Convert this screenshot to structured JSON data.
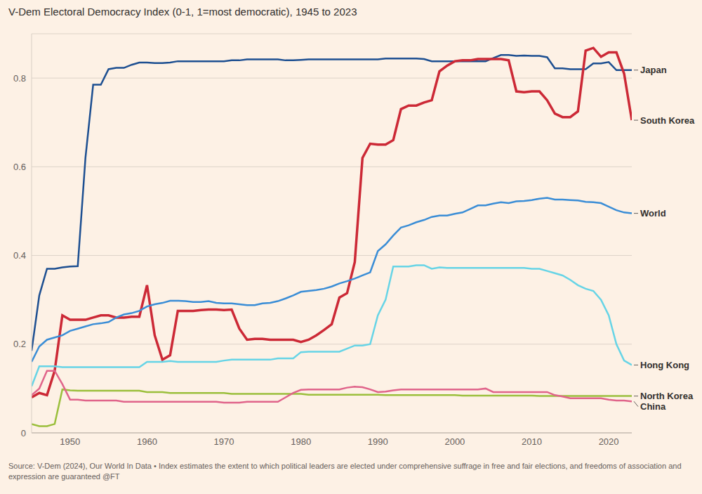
{
  "chart_data": {
    "type": "line",
    "title": "V-Dem Electoral Democracy Index (0-1, 1=most democratic), 1945 to 2023",
    "source": "Source: V-Dem (2024), Our World In Data • Index estimates the extent to which political leaders are elected under comprehensive suffrage in free and fair elections, and freedoms of association and expression are guaranteed @FT",
    "x": [
      1945,
      1946,
      1947,
      1948,
      1949,
      1950,
      1951,
      1952,
      1953,
      1954,
      1955,
      1956,
      1957,
      1958,
      1959,
      1960,
      1961,
      1962,
      1963,
      1964,
      1965,
      1966,
      1967,
      1968,
      1969,
      1970,
      1971,
      1972,
      1973,
      1974,
      1975,
      1976,
      1977,
      1978,
      1979,
      1980,
      1981,
      1982,
      1983,
      1984,
      1985,
      1986,
      1987,
      1988,
      1989,
      1990,
      1991,
      1992,
      1993,
      1994,
      1995,
      1996,
      1997,
      1998,
      1999,
      2000,
      2001,
      2002,
      2003,
      2004,
      2005,
      2006,
      2007,
      2008,
      2009,
      2010,
      2011,
      2012,
      2013,
      2014,
      2015,
      2016,
      2017,
      2018,
      2019,
      2020,
      2021,
      2022,
      2023
    ],
    "xlim": [
      1945,
      2023
    ],
    "xticks": [
      1950,
      1960,
      1970,
      1980,
      1990,
      2000,
      2010,
      2020
    ],
    "ylim": [
      0,
      0.9
    ],
    "yticks": [
      0,
      0.2,
      0.4,
      0.6,
      0.8
    ],
    "grid": true,
    "series": [
      {
        "name": "Japan",
        "color": "#1d4f91",
        "values": [
          0.185,
          0.31,
          0.37,
          0.37,
          0.373,
          0.375,
          0.376,
          0.62,
          0.785,
          0.785,
          0.82,
          0.823,
          0.823,
          0.83,
          0.835,
          0.835,
          0.834,
          0.834,
          0.835,
          0.838,
          0.838,
          0.838,
          0.838,
          0.838,
          0.838,
          0.838,
          0.84,
          0.84,
          0.842,
          0.842,
          0.842,
          0.842,
          0.842,
          0.84,
          0.84,
          0.841,
          0.842,
          0.842,
          0.842,
          0.842,
          0.842,
          0.842,
          0.842,
          0.842,
          0.842,
          0.842,
          0.844,
          0.844,
          0.844,
          0.844,
          0.844,
          0.843,
          0.838,
          0.838,
          0.838,
          0.838,
          0.838,
          0.838,
          0.838,
          0.838,
          0.845,
          0.852,
          0.852,
          0.85,
          0.851,
          0.85,
          0.85,
          0.847,
          0.822,
          0.822,
          0.82,
          0.82,
          0.82,
          0.833,
          0.833,
          0.836,
          0.818,
          0.818,
          0.818
        ]
      },
      {
        "name": "South Korea",
        "color": "#cc2936",
        "values": [
          0.08,
          0.09,
          0.085,
          0.14,
          0.265,
          0.255,
          0.255,
          0.255,
          0.26,
          0.265,
          0.265,
          0.26,
          0.26,
          0.262,
          0.262,
          0.333,
          0.22,
          0.165,
          0.175,
          0.275,
          0.275,
          0.275,
          0.277,
          0.278,
          0.278,
          0.277,
          0.278,
          0.235,
          0.21,
          0.212,
          0.212,
          0.21,
          0.21,
          0.21,
          0.21,
          0.205,
          0.21,
          0.22,
          0.232,
          0.245,
          0.305,
          0.315,
          0.385,
          0.62,
          0.652,
          0.65,
          0.65,
          0.66,
          0.73,
          0.738,
          0.738,
          0.745,
          0.75,
          0.815,
          0.828,
          0.838,
          0.84,
          0.84,
          0.843,
          0.843,
          0.843,
          0.843,
          0.84,
          0.77,
          0.768,
          0.77,
          0.77,
          0.75,
          0.72,
          0.712,
          0.712,
          0.725,
          0.862,
          0.868,
          0.848,
          0.858,
          0.858,
          0.81,
          0.705
        ]
      },
      {
        "name": "World",
        "color": "#3a8dd6",
        "values": [
          0.16,
          0.195,
          0.21,
          0.215,
          0.22,
          0.23,
          0.235,
          0.24,
          0.245,
          0.247,
          0.25,
          0.26,
          0.267,
          0.27,
          0.275,
          0.285,
          0.29,
          0.293,
          0.298,
          0.298,
          0.297,
          0.295,
          0.295,
          0.297,
          0.293,
          0.292,
          0.292,
          0.29,
          0.288,
          0.288,
          0.292,
          0.293,
          0.297,
          0.303,
          0.31,
          0.318,
          0.32,
          0.322,
          0.325,
          0.33,
          0.337,
          0.342,
          0.348,
          0.355,
          0.362,
          0.41,
          0.425,
          0.445,
          0.463,
          0.468,
          0.475,
          0.48,
          0.487,
          0.49,
          0.49,
          0.494,
          0.497,
          0.505,
          0.513,
          0.513,
          0.517,
          0.52,
          0.518,
          0.522,
          0.523,
          0.525,
          0.528,
          0.53,
          0.526,
          0.526,
          0.525,
          0.524,
          0.521,
          0.52,
          0.518,
          0.51,
          0.502,
          0.497,
          0.495
        ]
      },
      {
        "name": "Hong Kong",
        "color": "#66d4e6",
        "values": [
          0.105,
          0.15,
          0.15,
          0.15,
          0.148,
          0.148,
          0.148,
          0.148,
          0.148,
          0.148,
          0.148,
          0.148,
          0.148,
          0.148,
          0.148,
          0.16,
          0.16,
          0.16,
          0.162,
          0.16,
          0.16,
          0.16,
          0.16,
          0.16,
          0.16,
          0.163,
          0.165,
          0.165,
          0.165,
          0.165,
          0.165,
          0.165,
          0.168,
          0.168,
          0.168,
          0.182,
          0.183,
          0.183,
          0.183,
          0.183,
          0.183,
          0.19,
          0.197,
          0.197,
          0.2,
          0.265,
          0.3,
          0.375,
          0.375,
          0.375,
          0.378,
          0.378,
          0.37,
          0.373,
          0.372,
          0.372,
          0.372,
          0.372,
          0.372,
          0.372,
          0.372,
          0.372,
          0.372,
          0.372,
          0.372,
          0.37,
          0.37,
          0.365,
          0.36,
          0.355,
          0.345,
          0.333,
          0.325,
          0.32,
          0.3,
          0.265,
          0.2,
          0.163,
          0.153
        ]
      },
      {
        "name": "North Korea",
        "color": "#9bbf3c",
        "values": [
          0.02,
          0.015,
          0.015,
          0.02,
          0.098,
          0.096,
          0.095,
          0.095,
          0.095,
          0.095,
          0.095,
          0.095,
          0.095,
          0.095,
          0.095,
          0.092,
          0.092,
          0.092,
          0.09,
          0.09,
          0.09,
          0.09,
          0.09,
          0.09,
          0.09,
          0.09,
          0.088,
          0.088,
          0.088,
          0.088,
          0.088,
          0.088,
          0.088,
          0.088,
          0.088,
          0.088,
          0.086,
          0.086,
          0.086,
          0.086,
          0.086,
          0.086,
          0.086,
          0.086,
          0.086,
          0.086,
          0.085,
          0.085,
          0.085,
          0.085,
          0.085,
          0.085,
          0.085,
          0.085,
          0.085,
          0.085,
          0.084,
          0.084,
          0.084,
          0.084,
          0.084,
          0.084,
          0.084,
          0.084,
          0.084,
          0.084,
          0.083,
          0.083,
          0.083,
          0.083,
          0.083,
          0.083,
          0.083,
          0.083,
          0.083,
          0.083,
          0.083,
          0.083,
          0.083
        ]
      },
      {
        "name": "China",
        "color": "#e0648a",
        "values": [
          0.085,
          0.1,
          0.14,
          0.14,
          0.11,
          0.075,
          0.075,
          0.073,
          0.073,
          0.073,
          0.073,
          0.073,
          0.07,
          0.07,
          0.07,
          0.07,
          0.07,
          0.07,
          0.07,
          0.07,
          0.07,
          0.07,
          0.07,
          0.07,
          0.07,
          0.068,
          0.068,
          0.068,
          0.07,
          0.07,
          0.07,
          0.07,
          0.07,
          0.08,
          0.09,
          0.097,
          0.098,
          0.098,
          0.098,
          0.098,
          0.098,
          0.102,
          0.104,
          0.103,
          0.098,
          0.092,
          0.093,
          0.096,
          0.098,
          0.098,
          0.098,
          0.098,
          0.098,
          0.098,
          0.098,
          0.098,
          0.098,
          0.098,
          0.098,
          0.1,
          0.092,
          0.092,
          0.092,
          0.092,
          0.092,
          0.092,
          0.092,
          0.092,
          0.085,
          0.082,
          0.078,
          0.078,
          0.078,
          0.078,
          0.078,
          0.075,
          0.073,
          0.073,
          0.071
        ]
      }
    ]
  }
}
